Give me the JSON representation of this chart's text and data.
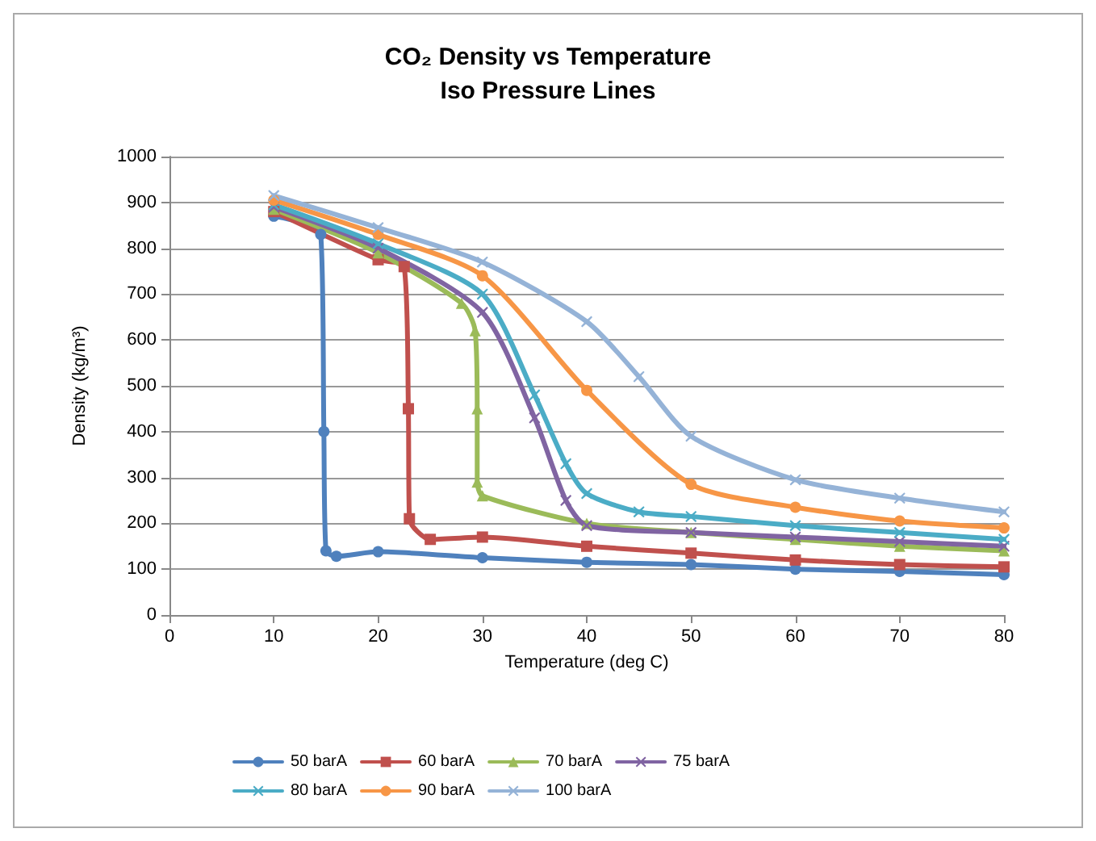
{
  "chart_data": {
    "type": "line",
    "title": "CO₂ Density vs Temperature",
    "subtitle": "Iso Pressure Lines",
    "xlabel": "Temperature (deg C)",
    "ylabel": "Density (kg/m³)",
    "xlim": [
      0,
      80
    ],
    "xticks": [
      0,
      10,
      20,
      30,
      40,
      50,
      60,
      70,
      80
    ],
    "ylim": [
      0,
      1000
    ],
    "yticks": [
      0,
      100,
      200,
      300,
      400,
      500,
      600,
      700,
      800,
      900,
      1000
    ],
    "grid": "y",
    "legend": "bottom",
    "series": [
      {
        "name": "50 barA",
        "color": "#4f81bd",
        "marker": "circle",
        "x": [
          10,
          14.5,
          14.8,
          15,
          16,
          20,
          30,
          40,
          50,
          60,
          70,
          80
        ],
        "values": [
          870,
          830,
          400,
          140,
          128,
          138,
          125,
          115,
          110,
          100,
          95,
          88
        ]
      },
      {
        "name": "60 barA",
        "color": "#c0504d",
        "marker": "square",
        "x": [
          10,
          20,
          22.5,
          22.9,
          23,
          25,
          30,
          40,
          50,
          60,
          70,
          80
        ],
        "values": [
          880,
          775,
          760,
          450,
          210,
          165,
          170,
          150,
          135,
          120,
          110,
          105
        ]
      },
      {
        "name": "70 barA",
        "color": "#9bbb59",
        "marker": "triangle",
        "x": [
          10,
          20,
          28,
          29.3,
          29.5,
          29.5,
          30,
          40,
          50,
          60,
          70,
          80
        ],
        "values": [
          885,
          790,
          680,
          620,
          450,
          290,
          260,
          200,
          180,
          165,
          150,
          140
        ]
      },
      {
        "name": "75 barA",
        "color": "#8064a2",
        "marker": "cross",
        "x": [
          10,
          20,
          30,
          35,
          38,
          40,
          50,
          60,
          70,
          80
        ],
        "values": [
          890,
          800,
          660,
          430,
          250,
          195,
          180,
          170,
          160,
          150
        ]
      },
      {
        "name": "80 barA",
        "color": "#4bacc6",
        "marker": "cross",
        "x": [
          10,
          20,
          30,
          35,
          38,
          40,
          45,
          50,
          60,
          70,
          80
        ],
        "values": [
          895,
          810,
          700,
          480,
          330,
          265,
          225,
          215,
          195,
          180,
          165
        ]
      },
      {
        "name": "90 barA",
        "color": "#f79646",
        "marker": "circle",
        "x": [
          10,
          20,
          30,
          40,
          50,
          60,
          70,
          80
        ],
        "values": [
          905,
          830,
          740,
          490,
          285,
          235,
          205,
          190
        ]
      },
      {
        "name": "100 barA",
        "color": "#95b3d7",
        "marker": "cross",
        "x": [
          10,
          20,
          30,
          40,
          45,
          50,
          60,
          70,
          80
        ],
        "values": [
          915,
          845,
          770,
          640,
          520,
          390,
          295,
          255,
          225
        ]
      }
    ]
  }
}
